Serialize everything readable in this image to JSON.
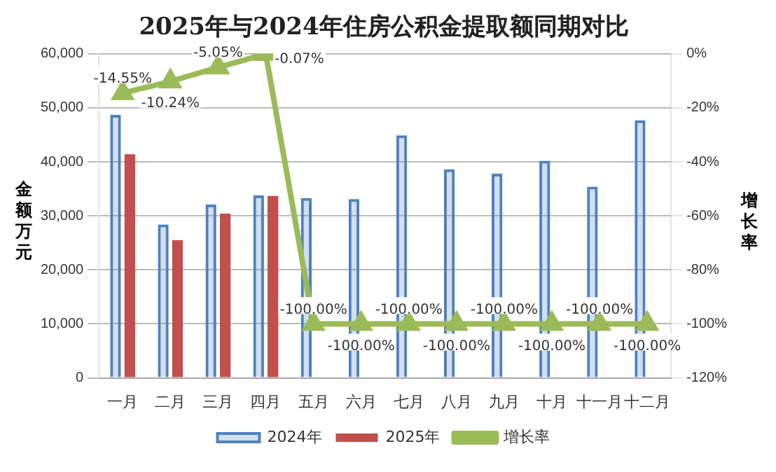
{
  "chart_data": {
    "type": "bar",
    "title": "2025年与2024年住房公积金提取额同期对比",
    "ylabel": "金额万元",
    "y2label": "增长率",
    "categories": [
      "一月",
      "二月",
      "三月",
      "四月",
      "五月",
      "六月",
      "七月",
      "八月",
      "九月",
      "十月",
      "十一月",
      "十二月"
    ],
    "series": [
      {
        "name": "2024年",
        "color": "#4f81bd",
        "values": [
          48700,
          28400,
          32100,
          33800,
          33300,
          33100,
          44900,
          38600,
          37800,
          40200,
          35400,
          47700
        ]
      },
      {
        "name": "2025年",
        "color": "#c0504d",
        "values": [
          41400,
          25500,
          30400,
          33700,
          null,
          null,
          null,
          null,
          null,
          null,
          null,
          null
        ]
      },
      {
        "name": "增长率",
        "type": "line",
        "axis": "y2",
        "color": "#9bbb59",
        "marker": "triangle",
        "values": [
          -14.55,
          -10.24,
          -5.05,
          -0.07,
          -100,
          -100,
          -100,
          -100,
          -100,
          -100,
          -100,
          -100
        ],
        "value_labels": [
          "-14.55%",
          "-10.24%",
          "-5.05%",
          "-0.07%",
          "-100.00%",
          "-100.00%",
          "-100.00%",
          "-100.00%",
          "-100.00%",
          "-100.00%",
          "-100.00%",
          "-100.00%"
        ]
      }
    ],
    "ylim": [
      0,
      60000
    ],
    "yticks": [
      {
        "value": 0,
        "label": "0"
      },
      {
        "value": 10000,
        "label": "10,000"
      },
      {
        "value": 20000,
        "label": "20,000"
      },
      {
        "value": 30000,
        "label": "30,000"
      },
      {
        "value": 40000,
        "label": "40,000"
      },
      {
        "value": 50000,
        "label": "50,000"
      },
      {
        "value": 60000,
        "label": "60,000"
      }
    ],
    "y2lim": [
      -120,
      0
    ],
    "y2ticks": [
      {
        "value": -120,
        "label": "-120%"
      },
      {
        "value": -100,
        "label": "-100%"
      },
      {
        "value": -80,
        "label": "-80%"
      },
      {
        "value": -60,
        "label": "-60%"
      },
      {
        "value": -40,
        "label": "-40%"
      },
      {
        "value": -20,
        "label": "-20%"
      },
      {
        "value": 0,
        "label": "0%"
      }
    ],
    "grid": "y",
    "legend": "bottom"
  }
}
